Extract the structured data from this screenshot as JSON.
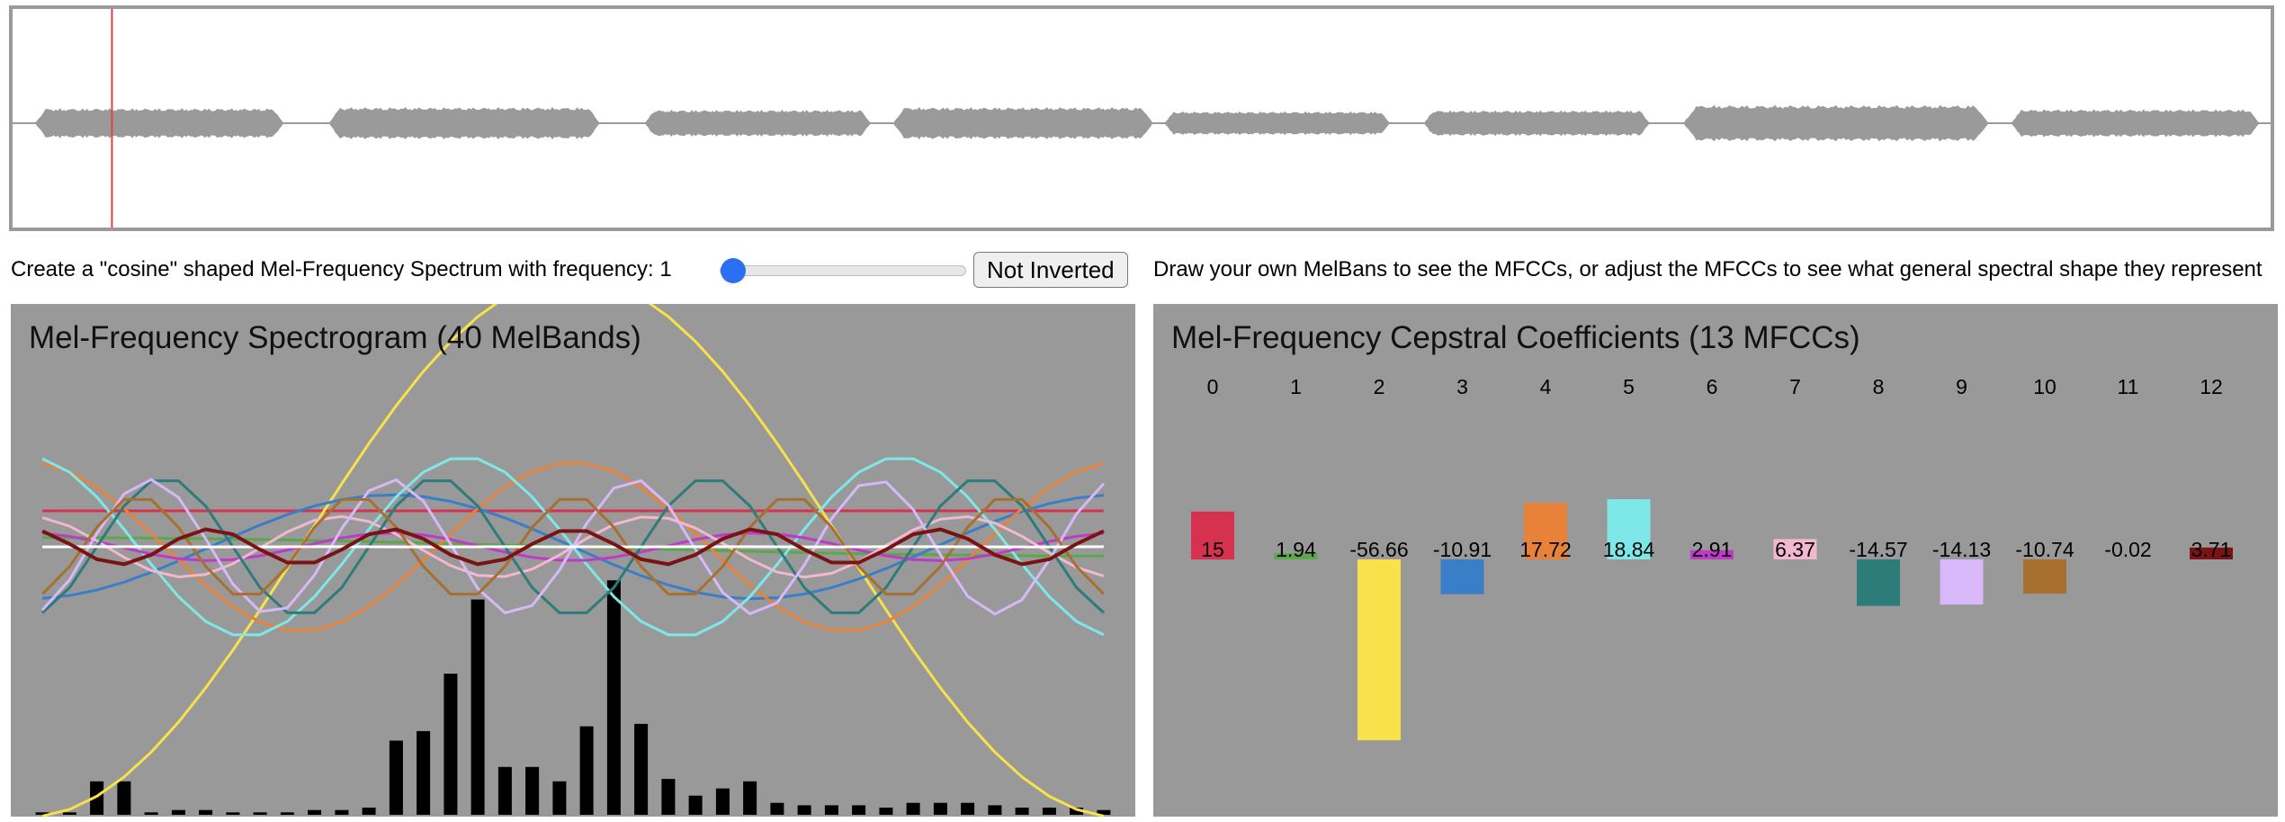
{
  "controls": {
    "cosine_label": "Create a \"cosine\" shaped Mel-Frequency Spectrum with frequency: 1",
    "slider_value": 1,
    "slider_min": 1,
    "slider_max": 10,
    "invert_label": "Not Inverted",
    "instructions": "Draw your own MelBans to see the MFCCs, or adjust the MFCCs to see what general spectral shape they represent"
  },
  "mel_panel": {
    "title": "Mel-Frequency Spectrogram (40 MelBands)",
    "mel_bands": [
      0.01,
      0.01,
      0.14,
      0.14,
      0.01,
      0.02,
      0.02,
      0.01,
      0.01,
      0.01,
      0.02,
      0.02,
      0.03,
      0.31,
      0.35,
      0.59,
      0.9,
      0.2,
      0.2,
      0.14,
      0.37,
      0.98,
      0.38,
      0.15,
      0.08,
      0.11,
      0.14,
      0.05,
      0.04,
      0.04,
      0.04,
      0.03,
      0.05,
      0.05,
      0.05,
      0.04,
      0.03,
      0.03,
      0.03,
      0.02
    ]
  },
  "mfcc_panel": {
    "title": "Mel-Frequency Cepstral Coefficients (13 MFCCs)",
    "coefficients": [
      {
        "index": "0",
        "value": "15",
        "num": 15,
        "color": "#d6314e"
      },
      {
        "index": "1",
        "value": "1.94",
        "num": 1.94,
        "color": "#5aa84a"
      },
      {
        "index": "2",
        "value": "-56.66",
        "num": -56.66,
        "color": "#f8e14a"
      },
      {
        "index": "3",
        "value": "-10.91",
        "num": -10.91,
        "color": "#3a7ec8"
      },
      {
        "index": "4",
        "value": "17.72",
        "num": 17.72,
        "color": "#e8823a"
      },
      {
        "index": "5",
        "value": "18.84",
        "num": 18.84,
        "color": "#7ee8e8"
      },
      {
        "index": "6",
        "value": "2.91",
        "num": 2.91,
        "color": "#c03ac8"
      },
      {
        "index": "7",
        "value": "6.37",
        "num": 6.37,
        "color": "#f2b8d0"
      },
      {
        "index": "8",
        "value": "-14.57",
        "num": -14.57,
        "color": "#2e7c7a"
      },
      {
        "index": "9",
        "value": "-14.13",
        "num": -14.13,
        "color": "#d8b8f8"
      },
      {
        "index": "10",
        "value": "-10.74",
        "num": -10.74,
        "color": "#a8702e"
      },
      {
        "index": "11",
        "value": "-0.02",
        "num": -0.02,
        "color": "#888888"
      },
      {
        "index": "12",
        "value": "3.71",
        "num": 3.71,
        "color": "#7a1414"
      }
    ]
  },
  "waveform": {
    "segments": [
      [
        0.01,
        0.12
      ],
      [
        0.14,
        0.26
      ],
      [
        0.28,
        0.38
      ],
      [
        0.39,
        0.505
      ],
      [
        0.51,
        0.61
      ],
      [
        0.625,
        0.725
      ],
      [
        0.74,
        0.875
      ],
      [
        0.885,
        0.995
      ]
    ],
    "amplitudes": [
      0.28,
      0.3,
      0.25,
      0.3,
      0.22,
      0.24,
      0.34,
      0.26
    ],
    "cursor_position": 0.044,
    "color": "#9a9a9a",
    "cursor_color": "#e04040"
  }
}
